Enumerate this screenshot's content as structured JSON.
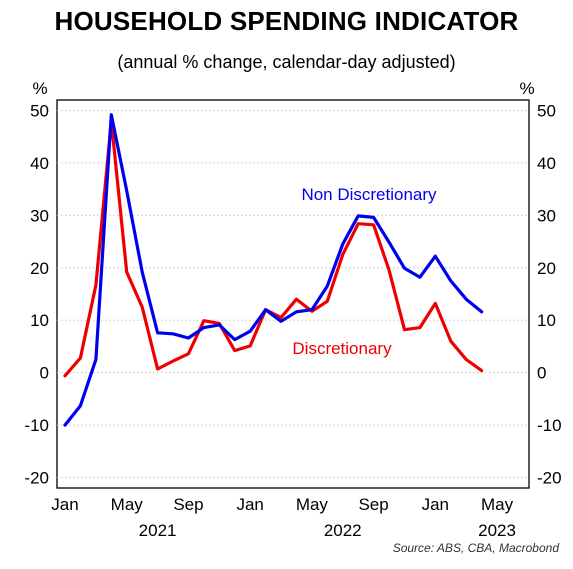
{
  "title": "HOUSEHOLD SPENDING INDICATOR",
  "subtitle": "(annual % change, calendar-day adjusted)",
  "source": "Source: ABS, CBA, Macrobond",
  "colors": {
    "non_discretionary": "#0000ee",
    "discretionary": "#ee0000",
    "grid": "#c8c8c8"
  },
  "chart_data": {
    "type": "line",
    "title": "HOUSEHOLD SPENDING INDICATOR",
    "subtitle": "(annual % change, calendar-day adjusted)",
    "ylabel_left": "%",
    "ylabel_right": "%",
    "ylim": [
      -22,
      52
    ],
    "yticks": [
      -20,
      -10,
      0,
      10,
      20,
      30,
      40,
      50
    ],
    "grid": "horizontal dotted",
    "x_tick_labels": [
      "Jan",
      "May",
      "Sep",
      "Jan",
      "May",
      "Sep",
      "Jan",
      "May"
    ],
    "x_tick_months": [
      0,
      4,
      8,
      12,
      16,
      20,
      24,
      28
    ],
    "year_labels": [
      {
        "label": "2021",
        "month": 6
      },
      {
        "label": "2022",
        "month": 18
      },
      {
        "label": "2023",
        "month": 28
      }
    ],
    "x": [
      "2021-01",
      "2021-02",
      "2021-03",
      "2021-04",
      "2021-05",
      "2021-06",
      "2021-07",
      "2021-08",
      "2021-09",
      "2021-10",
      "2021-11",
      "2021-12",
      "2022-01",
      "2022-02",
      "2022-03",
      "2022-04",
      "2022-05",
      "2022-06",
      "2022-07",
      "2022-08",
      "2022-09",
      "2022-10",
      "2022-11",
      "2022-12",
      "2023-01",
      "2023-02",
      "2023-03",
      "2023-04"
    ],
    "series": [
      {
        "name": "Non Discretionary",
        "color": "#0000ee",
        "values": [
          -10,
          -6.3,
          2.5,
          49.2,
          34.7,
          19.2,
          7.6,
          7.4,
          6.6,
          8.6,
          9.1,
          6.3,
          7.9,
          12.0,
          9.8,
          11.6,
          12.0,
          16.5,
          24.5,
          29.9,
          29.6,
          24.9,
          19.9,
          18.2,
          22.2,
          17.5,
          14.0,
          11.6
        ]
      },
      {
        "name": "Discretionary",
        "color": "#ee0000",
        "values": [
          -0.6,
          2.8,
          16.7,
          48.0,
          19.2,
          12.5,
          0.7,
          2.2,
          3.6,
          9.9,
          9.4,
          4.2,
          5.1,
          12.0,
          10.5,
          14.0,
          11.7,
          13.6,
          22.5,
          28.4,
          28.2,
          19.6,
          8.2,
          8.6,
          13.2,
          6.0,
          2.5,
          0.4
        ]
      }
    ]
  }
}
